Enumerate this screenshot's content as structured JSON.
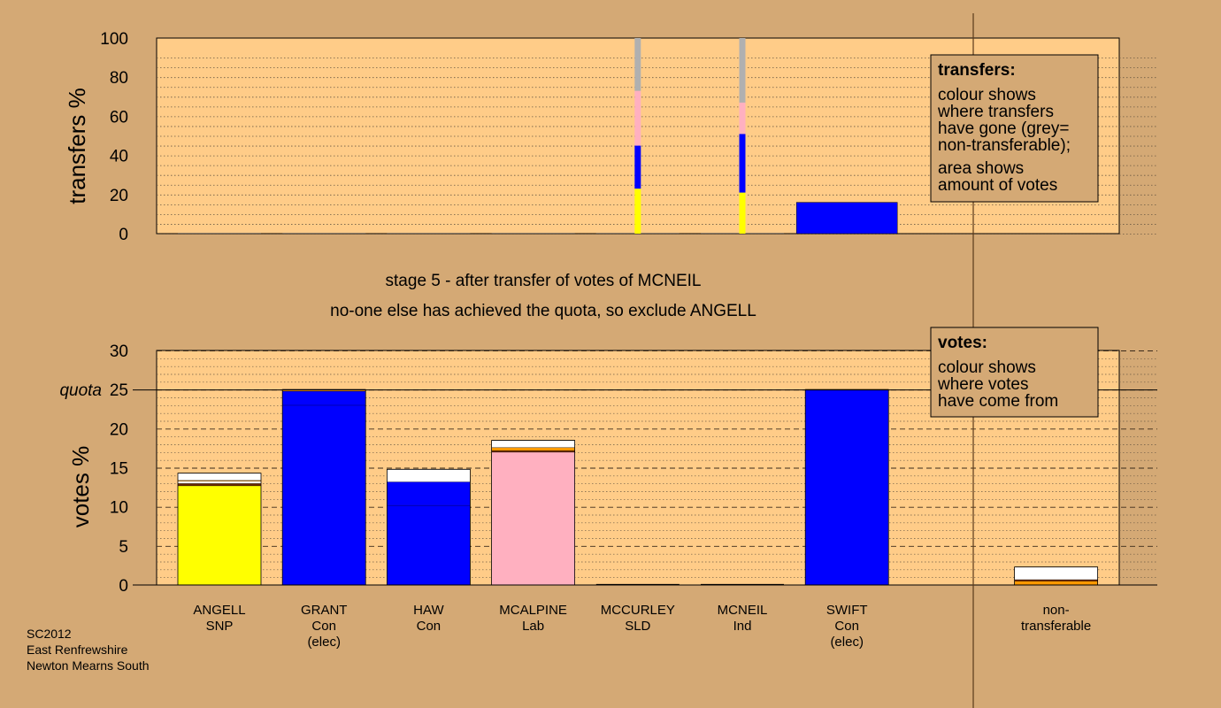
{
  "footer": [
    "SC2012",
    "East Renfrewshire",
    "Newton Mearns South"
  ],
  "stage_caption": "stage 5 - after transfer of votes of MCNEIL",
  "decision_caption": "no-one else has achieved the quota, so exclude ANGELL",
  "colors": {
    "background": "#d4a975",
    "plot_bg": "#ffcc88",
    "SNP": "#ffff00",
    "Con": "#0000ff",
    "Lab": "#ffb0c0",
    "SLD": "#ff9900",
    "Ind": "#ffffff",
    "nontransferable": "#b0b0b0",
    "white": "#ffffff",
    "dark": "#6b2a00"
  },
  "chart_data": [
    {
      "type": "bar",
      "id": "transfers",
      "ylabel": "transfers %",
      "ylim": [
        0,
        100
      ],
      "yticks": [
        0,
        20,
        40,
        60,
        80,
        100
      ],
      "categories": [
        "ANGELL",
        "GRANT",
        "HAW",
        "MCALPINE",
        "MCCURLEY",
        "MCNEIL",
        "SWIFT"
      ],
      "bars": [
        {
          "category": "MCCURLEY",
          "width": "thin",
          "segments": [
            {
              "color": "SNP",
              "value": 23
            },
            {
              "color": "Con",
              "value": 22
            },
            {
              "color": "Lab",
              "value": 28
            },
            {
              "color": "nontransferable",
              "value": 27
            }
          ]
        },
        {
          "category": "MCNEIL",
          "width": "thin",
          "segments": [
            {
              "color": "SNP",
              "value": 21
            },
            {
              "color": "Con",
              "value": 30
            },
            {
              "color": "Lab",
              "value": 16
            },
            {
              "color": "nontransferable",
              "value": 33
            }
          ]
        },
        {
          "category": "SWIFT",
          "width": "full",
          "segments": [
            {
              "color": "Con",
              "value": 16
            }
          ]
        }
      ],
      "legend": {
        "title": "transfers:",
        "lines": [
          "colour shows",
          "where transfers",
          "have gone (grey=",
          "non-transferable);",
          "area shows",
          "amount of votes"
        ]
      }
    },
    {
      "type": "bar",
      "id": "votes",
      "ylabel": "votes %",
      "ylim": [
        0,
        30
      ],
      "yticks": [
        0,
        5,
        10,
        15,
        20,
        25,
        30
      ],
      "quota": 25,
      "quota_label": "quota",
      "categories": [
        {
          "name": "ANGELL",
          "party": "SNP",
          "note": ""
        },
        {
          "name": "GRANT",
          "party": "Con",
          "note": "(elec)"
        },
        {
          "name": "HAW",
          "party": "Con",
          "note": ""
        },
        {
          "name": "MCALPINE",
          "party": "Lab",
          "note": ""
        },
        {
          "name": "MCCURLEY",
          "party": "SLD",
          "note": ""
        },
        {
          "name": "MCNEIL",
          "party": "Ind",
          "note": ""
        },
        {
          "name": "SWIFT",
          "party": "Con",
          "note": "(elec)"
        },
        {
          "name": "",
          "party": "",
          "note": ""
        },
        {
          "name": "non-",
          "party": "transferable",
          "note": ""
        }
      ],
      "bars": [
        {
          "segments": [
            {
              "color": "SNP",
              "value": 12.7
            },
            {
              "color": "dark",
              "value": 0.3
            },
            {
              "color": "white",
              "value": 0.3
            },
            {
              "color": "SLD",
              "value": 0.1
            },
            {
              "color": "white",
              "value": 0.9
            }
          ]
        },
        {
          "segments": [
            {
              "color": "Con",
              "value": 23.0
            },
            {
              "color": "Con",
              "value": 1.8
            },
            {
              "color": "SLD",
              "value": 0.2
            }
          ]
        },
        {
          "segments": [
            {
              "color": "Con",
              "value": 10.2
            },
            {
              "color": "Con",
              "value": 3.0
            },
            {
              "color": "white",
              "value": 1.6
            }
          ]
        },
        {
          "segments": [
            {
              "color": "Lab",
              "value": 17.0
            },
            {
              "color": "dark",
              "value": 0.2
            },
            {
              "color": "SLD",
              "value": 0.4
            },
            {
              "color": "white",
              "value": 0.9
            }
          ]
        },
        {
          "segments": []
        },
        {
          "segments": []
        },
        {
          "segments": [
            {
              "color": "Con",
              "value": 25.0
            }
          ]
        },
        {
          "segments": []
        },
        {
          "segments": [
            {
              "color": "SLD",
              "value": 0.5
            },
            {
              "color": "dark",
              "value": 0.2
            },
            {
              "color": "white",
              "value": 1.6
            }
          ]
        }
      ],
      "legend": {
        "title": "votes:",
        "lines": [
          "colour shows",
          "where votes",
          "have come from"
        ]
      }
    }
  ]
}
